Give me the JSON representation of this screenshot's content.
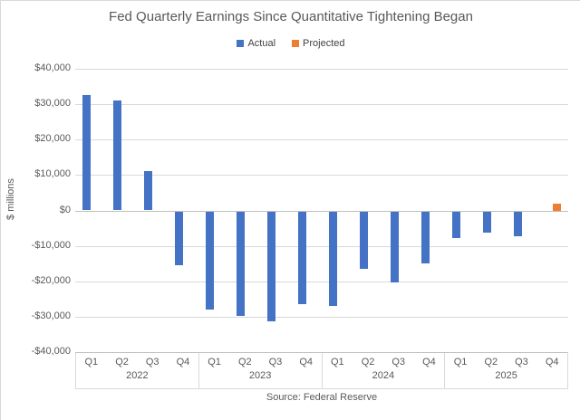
{
  "chart_data": {
    "type": "bar",
    "title": "Fed Quarterly Earnings Since Quantitative Tightening Began",
    "ylabel": "$ millions",
    "xlabel": "",
    "ylim": [
      -40000,
      40000
    ],
    "ytick_step": 10000,
    "ytick_labels": [
      "$40,000",
      "$30,000",
      "$20,000",
      "$10,000",
      "$0",
      "-$10,000",
      "-$20,000",
      "-$30,000",
      "-$40,000"
    ],
    "grid": true,
    "legend_position": "top",
    "groups": [
      {
        "label": "2022",
        "categories": [
          "Q1",
          "Q2",
          "Q3",
          "Q4"
        ]
      },
      {
        "label": "2023",
        "categories": [
          "Q1",
          "Q2",
          "Q3",
          "Q4"
        ]
      },
      {
        "label": "2024",
        "categories": [
          "Q1",
          "Q2",
          "Q3",
          "Q4"
        ]
      },
      {
        "label": "2025",
        "categories": [
          "Q1",
          "Q2",
          "Q3",
          "Q4"
        ]
      }
    ],
    "series": [
      {
        "name": "Actual",
        "color": "#4472C4",
        "values": [
          32500,
          31000,
          11000,
          -15000,
          -27500,
          -29500,
          -31000,
          -26000,
          -26500,
          -16000,
          -20000,
          -14500,
          -7500,
          -6000,
          -7000,
          null
        ]
      },
      {
        "name": "Projected",
        "color": "#ED7D31",
        "values": [
          null,
          null,
          null,
          null,
          null,
          null,
          null,
          null,
          null,
          null,
          null,
          null,
          null,
          null,
          null,
          2000
        ]
      }
    ],
    "source": "Source: Federal Reserve"
  },
  "colors": {
    "gridline": "#d9d9d9",
    "zero_line": "#bfbfbf",
    "text": "#595959"
  }
}
